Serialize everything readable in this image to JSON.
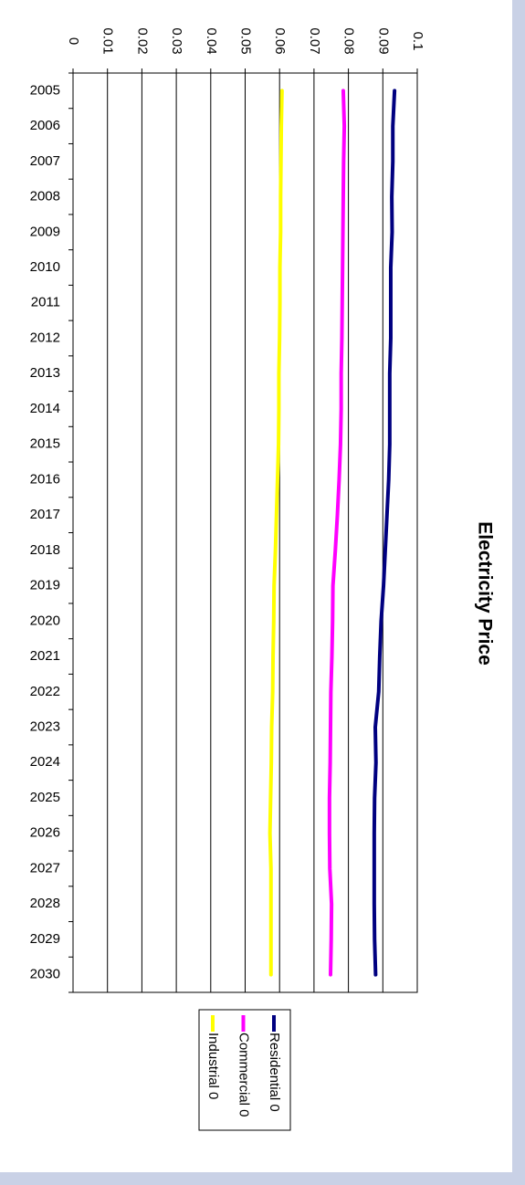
{
  "chart_data": {
    "type": "line",
    "title": "Electricity Price",
    "categories": [
      "2005",
      "2006",
      "2007",
      "2008",
      "2009",
      "2010",
      "2011",
      "2012",
      "2013",
      "2014",
      "2015",
      "2016",
      "2017",
      "2018",
      "2019",
      "2020",
      "2021",
      "2022",
      "2023",
      "2024",
      "2025",
      "2026",
      "2027",
      "2028",
      "2029",
      "2030"
    ],
    "series": [
      {
        "name": "Residential 0",
        "color": "#000080",
        "values": [
          0.0934,
          0.0929,
          0.0929,
          0.0926,
          0.0927,
          0.0923,
          0.0923,
          0.0923,
          0.092,
          0.092,
          0.092,
          0.0917,
          0.0912,
          0.0907,
          0.0902,
          0.0895,
          0.0891,
          0.0888,
          0.0878,
          0.088,
          0.0876,
          0.0875,
          0.0875,
          0.0875,
          0.0876,
          0.0879
        ]
      },
      {
        "name": "Commercial 0",
        "color": "#ff00ff",
        "values": [
          0.0785,
          0.0788,
          0.0786,
          0.0785,
          0.0784,
          0.0783,
          0.0782,
          0.0781,
          0.0779,
          0.0779,
          0.0777,
          0.0773,
          0.0768,
          0.0762,
          0.0755,
          0.0754,
          0.0752,
          0.0749,
          0.0748,
          0.0747,
          0.0745,
          0.0745,
          0.0746,
          0.0751,
          0.075,
          0.0748
        ]
      },
      {
        "name": "Industrial 0",
        "color": "#ffff00",
        "values": [
          0.0607,
          0.0605,
          0.0604,
          0.0603,
          0.0603,
          0.0601,
          0.0601,
          0.06,
          0.0598,
          0.0598,
          0.0597,
          0.0594,
          0.0591,
          0.0588,
          0.0584,
          0.0583,
          0.0581,
          0.058,
          0.0577,
          0.0576,
          0.0574,
          0.0572,
          0.0575,
          0.0575,
          0.0575,
          0.0575
        ]
      }
    ],
    "ylim": [
      0,
      0.1
    ],
    "yticks": [
      0,
      0.01,
      0.02,
      0.03,
      0.04,
      0.05,
      0.06,
      0.07,
      0.08,
      0.09,
      0.1
    ],
    "grid": true
  }
}
